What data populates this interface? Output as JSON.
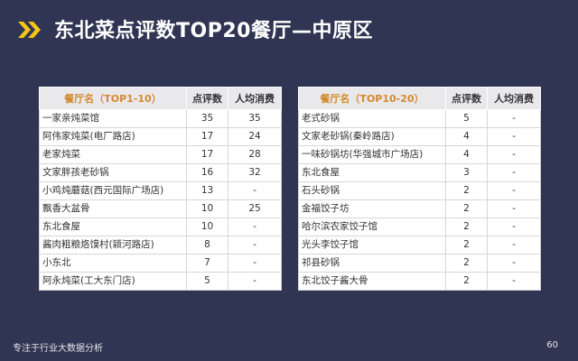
{
  "slide": {
    "title": "东北菜点评数TOP20餐厅—中原区",
    "footer": "专注于行业大数据分析",
    "page_number": "60",
    "accent_color": "#f5c518",
    "background_color": "#2f3552"
  },
  "table_left": {
    "headers": [
      "餐厅名（TOP1-10）",
      "点评数",
      "人均消费"
    ],
    "rows": [
      [
        "一家亲炖菜馆",
        "35",
        "35"
      ],
      [
        "阿伟家炖菜(电厂路店)",
        "17",
        "24"
      ],
      [
        "老家炖菜",
        "17",
        "28"
      ],
      [
        "文家胖孩老砂锅",
        "16",
        "32"
      ],
      [
        "小鸡炖蘑菇(西元国际广场店)",
        "13",
        "-"
      ],
      [
        "飘香大盆骨",
        "10",
        "25"
      ],
      [
        "东北食屋",
        "10",
        "-"
      ],
      [
        "酱肉粗粮烙馍村(颍河路店)",
        "8",
        "-"
      ],
      [
        "小东北",
        "7",
        "-"
      ],
      [
        "阿永炖菜(工大东门店)",
        "5",
        "-"
      ]
    ]
  },
  "table_right": {
    "headers": [
      "餐厅名（TOP10-20）",
      "点评数",
      "人均消费"
    ],
    "rows": [
      [
        "老式砂锅",
        "5",
        "-"
      ],
      [
        "文家老砂锅(秦岭路店)",
        "4",
        "-"
      ],
      [
        "一味砂锅坊(华强城市广场店)",
        "4",
        "-"
      ],
      [
        "东北食屋",
        "3",
        "-"
      ],
      [
        "石头砂锅",
        "2",
        "-"
      ],
      [
        "金福饺子坊",
        "2",
        "-"
      ],
      [
        "哈尔滨农家饺子馆",
        "2",
        "-"
      ],
      [
        "光头李饺子馆",
        "2",
        "-"
      ],
      [
        "祁县砂锅",
        "2",
        "-"
      ],
      [
        "东北饺子酱大骨",
        "2",
        "-"
      ]
    ]
  }
}
